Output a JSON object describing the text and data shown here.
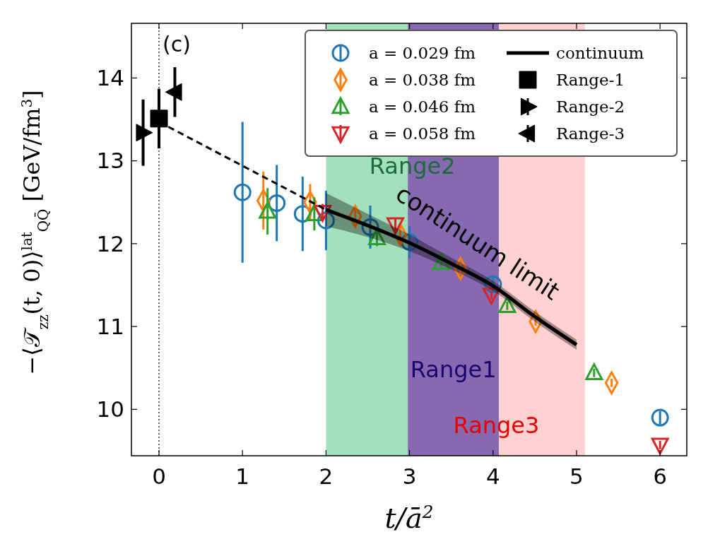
{
  "chart_data": {
    "type": "scatter",
    "xlabel": "t/ā$^{2}$",
    "ylabel": "−⟨𝒯$_{zz}$(t, 0)⟩$^{lat}$$_{QQ̄}$ [GeV/fm$^{3}$]",
    "xlim": [
      -0.33,
      6.32
    ],
    "ylim": [
      9.44,
      14.66
    ],
    "xticks": [
      0,
      1,
      2,
      3,
      4,
      5,
      6
    ],
    "yticks": [
      10,
      11,
      12,
      13,
      14
    ],
    "grid": false,
    "legend": "top right",
    "ref_lines": [
      {
        "axis": "x",
        "value": 0,
        "color": "#000000",
        "line_style": "dotted"
      }
    ],
    "bands": [
      {
        "axis": "x",
        "from": 2.0,
        "to": 4.07,
        "label": "Range2",
        "color": "#33bb6a"
      },
      {
        "axis": "x",
        "from": 2.98,
        "to": 5.1,
        "label": "Range3",
        "color": "#ff9999"
      },
      {
        "axis": "x",
        "from": 2.98,
        "to": 4.07,
        "label": "Range1",
        "color": "#3300bb"
      }
    ],
    "annotations": [
      "(c)",
      "continuum limit"
    ],
    "series": [
      {
        "name": "a = 0.029 fm",
        "color": "#1f77b4",
        "marker": "circle",
        "x": [
          1.0,
          1.41,
          1.72,
          2.0,
          2.53,
          3.0,
          4.0,
          6.0
        ],
        "values": [
          12.62,
          12.49,
          12.36,
          12.28,
          12.2,
          12.02,
          11.51,
          9.9
        ],
        "errors": [
          0.85,
          0.46,
          0.45,
          0.36,
          0.26,
          0.19,
          0.1,
          0.08
        ]
      },
      {
        "name": "a = 0.038 fm",
        "color": "#ff7f0e",
        "marker": "diamond",
        "x": [
          1.25,
          1.81,
          2.35,
          2.89,
          3.61,
          4.51,
          5.42
        ],
        "values": [
          12.52,
          12.5,
          12.33,
          12.11,
          11.7,
          11.06,
          10.32
        ],
        "errors": [
          0.35,
          0.22,
          0.12,
          0.1,
          0.07,
          0.05,
          0.05
        ]
      },
      {
        "name": "a = 0.046 fm",
        "color": "#2ca02c",
        "marker": "triangle",
        "x": [
          1.3,
          1.86,
          2.61,
          3.38,
          4.17,
          5.21
        ],
        "values": [
          12.39,
          12.36,
          12.07,
          11.77,
          11.25,
          10.44
        ],
        "errors": [
          0.28,
          0.2,
          0.1,
          0.07,
          0.05,
          0.05
        ]
      },
      {
        "name": "a = 0.058 fm",
        "color": "#d62728",
        "marker": "triangle_down",
        "x": [
          1.96,
          2.83,
          3.98,
          6.0
        ],
        "values": [
          12.38,
          12.23,
          11.38,
          9.57
        ],
        "errors": [
          0.1,
          0.07,
          0.05,
          0.05
        ]
      },
      {
        "name": "continuum",
        "type": "line",
        "color": "#000000",
        "marker": "none",
        "x": [
          2,
          2.5,
          3,
          3.5,
          4,
          4.5,
          5
        ],
        "values": [
          12.41,
          12.22,
          12.01,
          11.76,
          11.49,
          11.12,
          10.78
        ],
        "lower": [
          12.21,
          12.08,
          11.91,
          11.69,
          11.43,
          11.06,
          10.72
        ],
        "upper": [
          12.61,
          12.36,
          12.11,
          11.83,
          11.55,
          11.18,
          10.84
        ]
      },
      {
        "name": "Range-1",
        "color": "#000000",
        "marker": "square",
        "x": [
          0
        ],
        "values": [
          13.51
        ],
        "errors": [
          0.36
        ]
      },
      {
        "name": "Range-2",
        "color": "#000000",
        "marker": "triangle_right",
        "x": [
          -0.19
        ],
        "values": [
          13.34
        ],
        "errors": [
          0.4
        ]
      },
      {
        "name": "Range-3",
        "color": "#000000",
        "marker": "triangle_left",
        "x": [
          0.19
        ],
        "values": [
          13.83
        ],
        "errors": [
          0.3
        ]
      },
      {
        "type": "line",
        "color": "#000000",
        "marker": "none",
        "line_style": "dashed",
        "x": [
          0,
          2
        ],
        "values": [
          13.47,
          12.41
        ]
      }
    ]
  }
}
